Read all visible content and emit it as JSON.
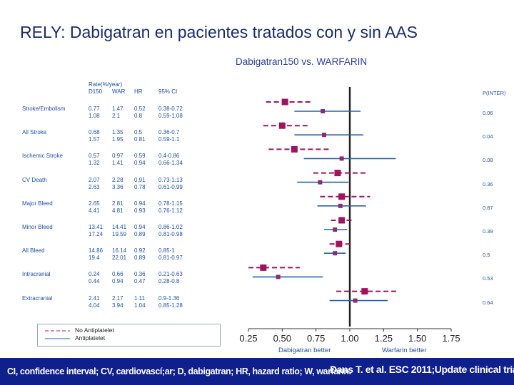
{
  "slide": {
    "title": "RELY: Dabigatran en pacientes tratados con y sin AAS"
  },
  "chart_data": {
    "type": "forest",
    "title": "Dabigatran150 vs. WARFARIN",
    "rate_header": "Rate(%/year)",
    "col_headers": [
      "D150",
      "WAR",
      "HR",
      "95% CI"
    ],
    "p_header": "P(INTER)",
    "x_ticks": [
      "0.25",
      "0.50",
      "0.75",
      "1.00",
      "1.25",
      "1.50",
      "1.75"
    ],
    "xlim": [
      0.25,
      1.75
    ],
    "reference_line": 1.0,
    "xlabel_left": "Dabigatran better",
    "xlabel_right": "Warfarin better",
    "colors": {
      "no_antiplatelet": "#a0145e",
      "antiplatelet": "#2a62a8",
      "reference": "#222222"
    },
    "series": [
      {
        "name": "No Antiplatelet",
        "style": "dashed"
      },
      {
        "name": "Antiplatelet",
        "style": "solid"
      }
    ],
    "rows": [
      {
        "label": "Stroke/Embolism",
        "p": "0.06",
        "no": {
          "d150": "0.77",
          "war": "1.47",
          "hr": "0.52",
          "ci": "0.38-0.72",
          "est": 0.52,
          "lo": 0.38,
          "hi": 0.72
        },
        "yes": {
          "d150": "1.08",
          "war": "2.1",
          "hr": "0.8",
          "ci": "0.59-1.08",
          "est": 0.8,
          "lo": 0.59,
          "hi": 1.08
        }
      },
      {
        "label": "All Stroke",
        "p": "0.04",
        "no": {
          "d150": "0.68",
          "war": "1.35",
          "hr": "0.5",
          "ci": "0.36-0.7",
          "est": 0.5,
          "lo": 0.36,
          "hi": 0.7
        },
        "yes": {
          "d150": "1.57",
          "war": "1.95",
          "hr": "0.81",
          "ci": "0.59-1.1",
          "est": 0.81,
          "lo": 0.59,
          "hi": 1.1
        }
      },
      {
        "label": "Ischemic Stroke",
        "p": "0.08",
        "no": {
          "d150": "0.57",
          "war": "0.97",
          "hr": "0.59",
          "ci": "0.4-0.86",
          "est": 0.59,
          "lo": 0.4,
          "hi": 0.86
        },
        "yes": {
          "d150": "1.32",
          "war": "1.41",
          "hr": "0.94",
          "ci": "0.66-1.34",
          "est": 0.94,
          "lo": 0.66,
          "hi": 1.34
        }
      },
      {
        "label": "CV Death",
        "p": "0.36",
        "no": {
          "d150": "2.07",
          "war": "2.28",
          "hr": "0.91",
          "ci": "0.73-1.13",
          "est": 0.91,
          "lo": 0.73,
          "hi": 1.13
        },
        "yes": {
          "d150": "2.63",
          "war": "3.36",
          "hr": "0.78",
          "ci": "0.61-0.99",
          "est": 0.78,
          "lo": 0.61,
          "hi": 0.99
        }
      },
      {
        "label": "Major Bleed",
        "p": "0.87",
        "no": {
          "d150": "2.65",
          "war": "2.81",
          "hr": "0.94",
          "ci": "0.78-1.15",
          "est": 0.94,
          "lo": 0.78,
          "hi": 1.15
        },
        "yes": {
          "d150": "4.41",
          "war": "4.81",
          "hr": "0.93",
          "ci": "0.76-1.12",
          "est": 0.93,
          "lo": 0.76,
          "hi": 1.12
        }
      },
      {
        "label": "Minor Bleed",
        "p": "0.39",
        "no": {
          "d150": "13.41",
          "war": "14.41",
          "hr": "0.94",
          "ci": "0.86-1.02",
          "est": 0.94,
          "lo": 0.86,
          "hi": 1.02
        },
        "yes": {
          "d150": "17.24",
          "war": "19.59",
          "hr": "0.89",
          "ci": "0.81-0.98",
          "est": 0.89,
          "lo": 0.81,
          "hi": 0.98
        }
      },
      {
        "label": "All Bleed",
        "p": "0.5",
        "no": {
          "d150": "14.86",
          "war": "16.14",
          "hr": "0.92",
          "ci": "0.85-1",
          "est": 0.92,
          "lo": 0.85,
          "hi": 1.0
        },
        "yes": {
          "d150": "19.4",
          "war": "22.01",
          "hr": "0.89",
          "ci": "0.81-0.97",
          "est": 0.89,
          "lo": 0.81,
          "hi": 0.97
        }
      },
      {
        "label": "Intracranial",
        "p": "0.53",
        "no": {
          "d150": "0.24",
          "war": "0.66",
          "hr": "0.36",
          "ci": "0.21-0.63",
          "est": 0.36,
          "lo": 0.21,
          "hi": 0.63
        },
        "yes": {
          "d150": "0.44",
          "war": "0.94",
          "hr": "0.47",
          "ci": "0.28-0.8",
          "est": 0.47,
          "lo": 0.28,
          "hi": 0.8
        }
      },
      {
        "label": "Extracranial",
        "p": "0.64",
        "no": {
          "d150": "2.41",
          "war": "2.17",
          "hr": "1.11",
          "ci": "0.9-1.36",
          "est": 1.11,
          "lo": 0.9,
          "hi": 1.36
        },
        "yes": {
          "d150": "4.04",
          "war": "3.94",
          "hr": "1.04",
          "ci": "0.85-1.28",
          "est": 1.04,
          "lo": 0.85,
          "hi": 1.28
        }
      }
    ]
  },
  "footer": {
    "abbreviations": "CI, confidence interval; CV, cardiovascí;ar; D, dabigatran; HR, hazard ratio; W, warfarin.",
    "citation": "Dans T. et al. ESC 2011;Update clinical trial."
  }
}
